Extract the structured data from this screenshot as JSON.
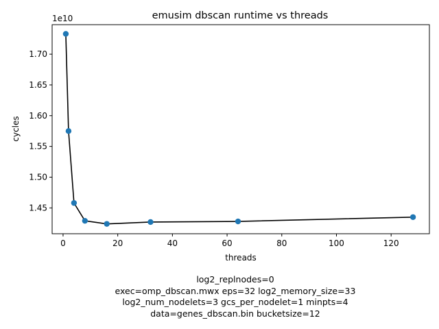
{
  "chart_data": {
    "type": "scatter",
    "title": "emusim dbscan runtime vs threads",
    "xlabel": "threads",
    "ylabel": "cycles",
    "offset_label": "1e10",
    "xlim": [
      -4,
      134
    ],
    "ylim": [
      1.408,
      1.748
    ],
    "x_ticks": [
      0,
      20,
      40,
      60,
      80,
      100,
      120
    ],
    "x_tick_labels": [
      "0",
      "20",
      "40",
      "60",
      "80",
      "100",
      "120"
    ],
    "y_ticks": [
      1.45,
      1.5,
      1.55,
      1.6,
      1.65,
      1.7
    ],
    "y_tick_labels": [
      "1.45",
      "1.50",
      "1.55",
      "1.60",
      "1.65",
      "1.70"
    ],
    "grid": false,
    "legend": "none",
    "colors": {
      "marker": "#1f77b4",
      "line": "#000000"
    },
    "series": [
      {
        "x": [
          1,
          2,
          4,
          8,
          16,
          32,
          64,
          128
        ],
        "y": [
          1.733,
          1.575,
          1.458,
          1.429,
          1.424,
          1.427,
          1.428,
          1.435
        ]
      }
    ],
    "footnote_lines": [
      "log2_replnodes=0",
      "exec=omp_dbscan.mwx   eps=32   log2_memory_size=33",
      "log2_num_nodelets=3   gcs_per_nodelet=1   minpts=4",
      "data=genes_dbscan.bin   bucketsize=12"
    ]
  }
}
